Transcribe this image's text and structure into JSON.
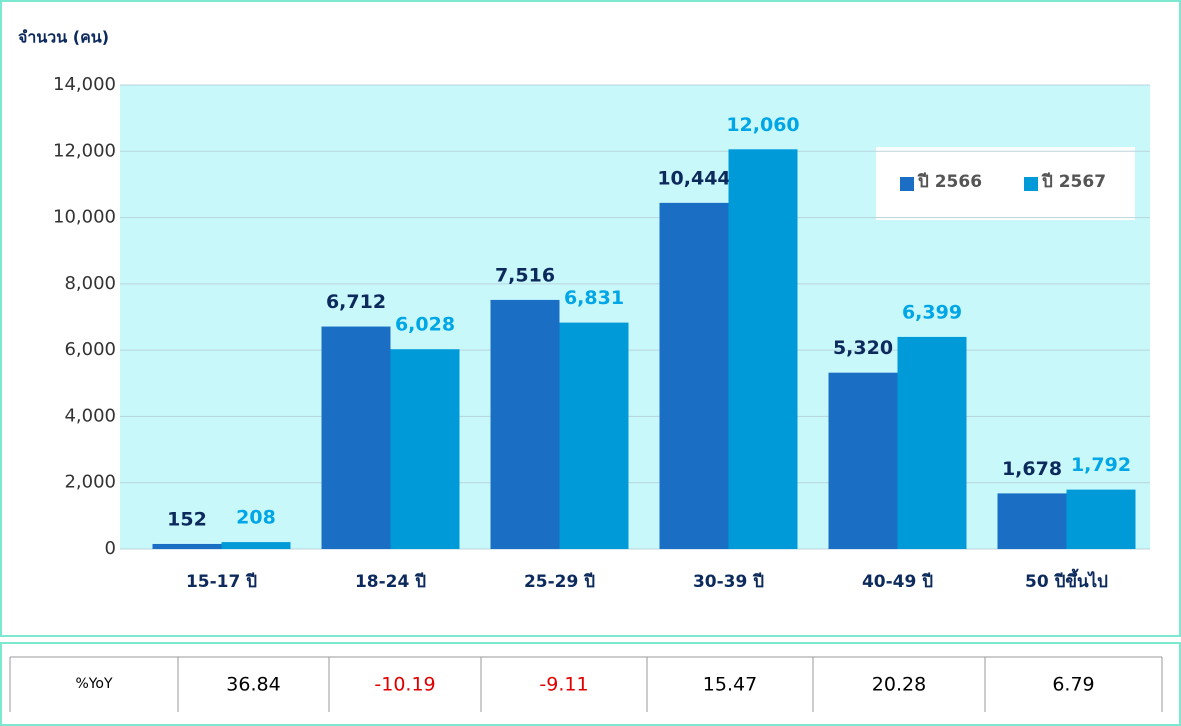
{
  "chart_data": {
    "type": "bar",
    "y_axis_label": "จำนวน (คน)",
    "categories": [
      "15-17 ปี",
      "18-24 ปี",
      "25-29 ปี",
      "30-39 ปี",
      "40-49 ปี",
      "50 ปีขึ้นไป"
    ],
    "series": [
      {
        "name": "ปี 2566",
        "color": "#1a6fc4",
        "label_color": "#0d2a5c",
        "values": [
          152,
          6712,
          7516,
          10444,
          5320,
          1678
        ],
        "value_labels": [
          "152",
          "6,712",
          "7,516",
          "10,444",
          "5,320",
          "1,678"
        ]
      },
      {
        "name": "ปี 2567",
        "color": "#009ad9",
        "label_color": "#00a6e6",
        "values": [
          208,
          6028,
          6831,
          12060,
          6399,
          1792
        ],
        "value_labels": [
          "208",
          "6,028",
          "6,831",
          "12,060",
          "6,399",
          "1,792"
        ]
      }
    ],
    "ylim": [
      0,
      14000
    ],
    "yticks": [
      0,
      {
        "value": 2000,
        "label": "2,000"
      },
      {
        "value": 4000,
        "label": "4,000"
      },
      {
        "value": 6000,
        "label": "6,000"
      },
      {
        "value": 8000,
        "label": "8,000"
      },
      {
        "value": 10000,
        "label": "10,000"
      },
      {
        "value": 12000,
        "label": "12,000"
      },
      {
        "value": 14000,
        "label": "14,000"
      }
    ],
    "grid": true,
    "legend": "top-right"
  },
  "table": {
    "header": "%YoY",
    "values": [
      36.84,
      -10.19,
      -9.11,
      15.47,
      20.28,
      6.79
    ],
    "negative_color": "#e00000"
  }
}
